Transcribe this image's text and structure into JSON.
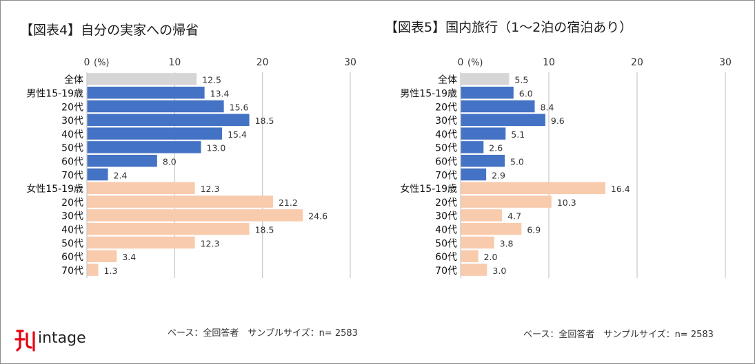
{
  "chart_data": [
    {
      "type": "bar",
      "orientation": "horizontal",
      "title": "【図表4】自分の実家への帰省",
      "unit_label": "(%)",
      "xlim": [
        0,
        30
      ],
      "ticks": [
        0,
        10,
        20,
        30
      ],
      "categories": [
        "全体",
        "男性15-19歳",
        "20代",
        "30代",
        "40代",
        "50代",
        "60代",
        "70代",
        "女性15-19歳",
        "20代",
        "30代",
        "40代",
        "50代",
        "60代",
        "70代"
      ],
      "groups": [
        "total",
        "male",
        "male",
        "male",
        "male",
        "male",
        "male",
        "male",
        "female",
        "female",
        "female",
        "female",
        "female",
        "female",
        "female"
      ],
      "values": [
        12.5,
        13.4,
        15.6,
        18.5,
        15.4,
        13.0,
        8.0,
        2.4,
        12.3,
        21.2,
        24.6,
        18.5,
        12.3,
        3.4,
        1.3
      ],
      "value_labels": [
        "12.5",
        "13.4",
        "15.6",
        "18.5",
        "15.4",
        "13.0",
        "8.0",
        "2.4",
        "12.3",
        "21.2",
        "24.6",
        "18.5",
        "12.3",
        "3.4",
        "1.3"
      ],
      "footer": "ベース：全回答者　サンプルサイズ：n= 2583"
    },
    {
      "type": "bar",
      "orientation": "horizontal",
      "title": "【図表5】国内旅行（1～2泊の宿泊あり）",
      "unit_label": "(%)",
      "xlim": [
        0,
        30
      ],
      "ticks": [
        0,
        10,
        20,
        30
      ],
      "categories": [
        "全体",
        "男性15-19歳",
        "20代",
        "30代",
        "40代",
        "50代",
        "60代",
        "70代",
        "女性15-19歳",
        "20代",
        "30代",
        "40代",
        "50代",
        "60代",
        "70代"
      ],
      "groups": [
        "total",
        "male",
        "male",
        "male",
        "male",
        "male",
        "male",
        "male",
        "female",
        "female",
        "female",
        "female",
        "female",
        "female",
        "female"
      ],
      "values": [
        5.5,
        6.0,
        8.4,
        9.6,
        5.1,
        2.6,
        5.0,
        2.9,
        16.4,
        10.3,
        4.7,
        6.9,
        3.8,
        2.0,
        3.0
      ],
      "value_labels": [
        "5.5",
        "6.0",
        "8.4",
        "9.6",
        "5.1",
        "2.6",
        "5.0",
        "2.9",
        "16.4",
        "10.3",
        "4.7",
        "6.9",
        "3.8",
        "2.0",
        "3.0"
      ],
      "footer": "ベース：全回答者　サンプルサイズ：n= 2583"
    }
  ],
  "colors": {
    "total": "#d6d6d6",
    "male": "#4472c4",
    "female": "#f8cbad",
    "grid": "#c8c8c8"
  },
  "logo": {
    "text": "intage",
    "icon": "intage-logo-icon"
  }
}
